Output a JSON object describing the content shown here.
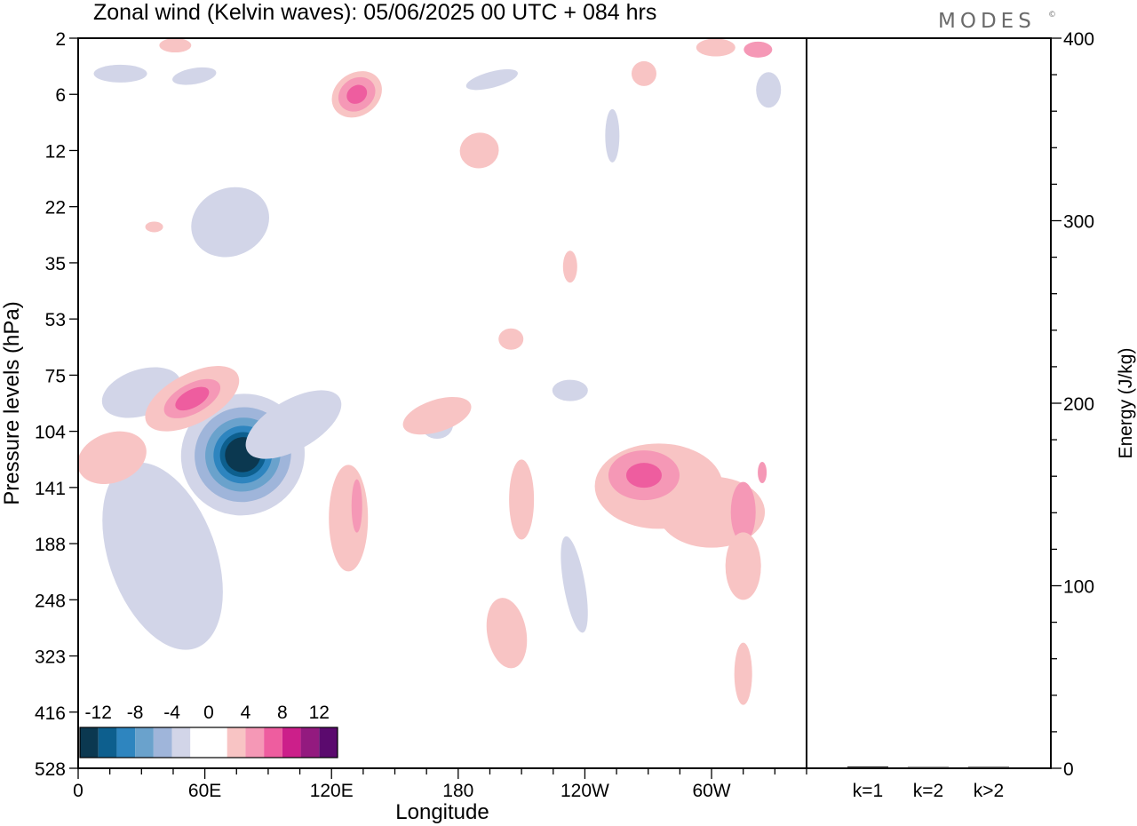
{
  "brand": {
    "name": "MODES",
    "mark": "©"
  },
  "chart_data": [
    {
      "type": "heatmap",
      "title": "Zonal wind (Kelvin waves):  05/06/2025  00 UTC  + 084 hrs",
      "xlabel": "Longitude",
      "ylabel": "Pressure levels (hPa)",
      "x_ticks": [
        "0",
        "60E",
        "120E",
        "180",
        "120W",
        "60W"
      ],
      "x_range_degE": [
        0,
        345
      ],
      "y_ticks": [
        "2",
        "6",
        "12",
        "22",
        "35",
        "53",
        "75",
        "104",
        "141",
        "188",
        "248",
        "323",
        "416",
        "528"
      ],
      "y_direction": "top-to-bottom",
      "colorbar": {
        "labels": [
          "-12",
          "-8",
          "-4",
          "0",
          "4",
          "8",
          "12"
        ],
        "colors": [
          "#0b3850",
          "#0d5f8e",
          "#2e85bf",
          "#6aa2cc",
          "#9fb5da",
          "#d2d5e8",
          "#ffffff",
          "#ffffff",
          "#f8c4c4",
          "#f598b6",
          "#ee5d9f",
          "#cc1f8a",
          "#931a7f",
          "#5b0a6e"
        ],
        "placement": "bottom-left"
      },
      "features": [
        {
          "name": "westerly anomaly",
          "lon_degE": 55,
          "pressure_hPa": 90,
          "peak": 8
        },
        {
          "name": "easterly anomaly",
          "lon_degE": 78,
          "pressure_hPa": 120,
          "peak": -14
        },
        {
          "name": "westerly anomaly",
          "lon_degE": 268,
          "pressure_hPa": 130,
          "peak": 8
        },
        {
          "name": "westerly anomaly",
          "lon_degE": 132,
          "pressure_hPa": 150,
          "peak": 6
        },
        {
          "name": "westerly anomaly",
          "lon_degE": 314,
          "pressure_hPa": 160,
          "peak": 6
        },
        {
          "name": "westerly anomaly",
          "lon_degE": 132,
          "pressure_hPa": 6,
          "peak": 6
        }
      ]
    },
    {
      "type": "bar",
      "ylabel": "Energy (J/kg)",
      "ylim": [
        0,
        400
      ],
      "y_ticks": [
        "0",
        "100",
        "200",
        "300",
        "400"
      ],
      "categories": [
        "k=1",
        "k=2",
        "k>2"
      ],
      "values": [
        1,
        0.5,
        0.8
      ]
    }
  ]
}
